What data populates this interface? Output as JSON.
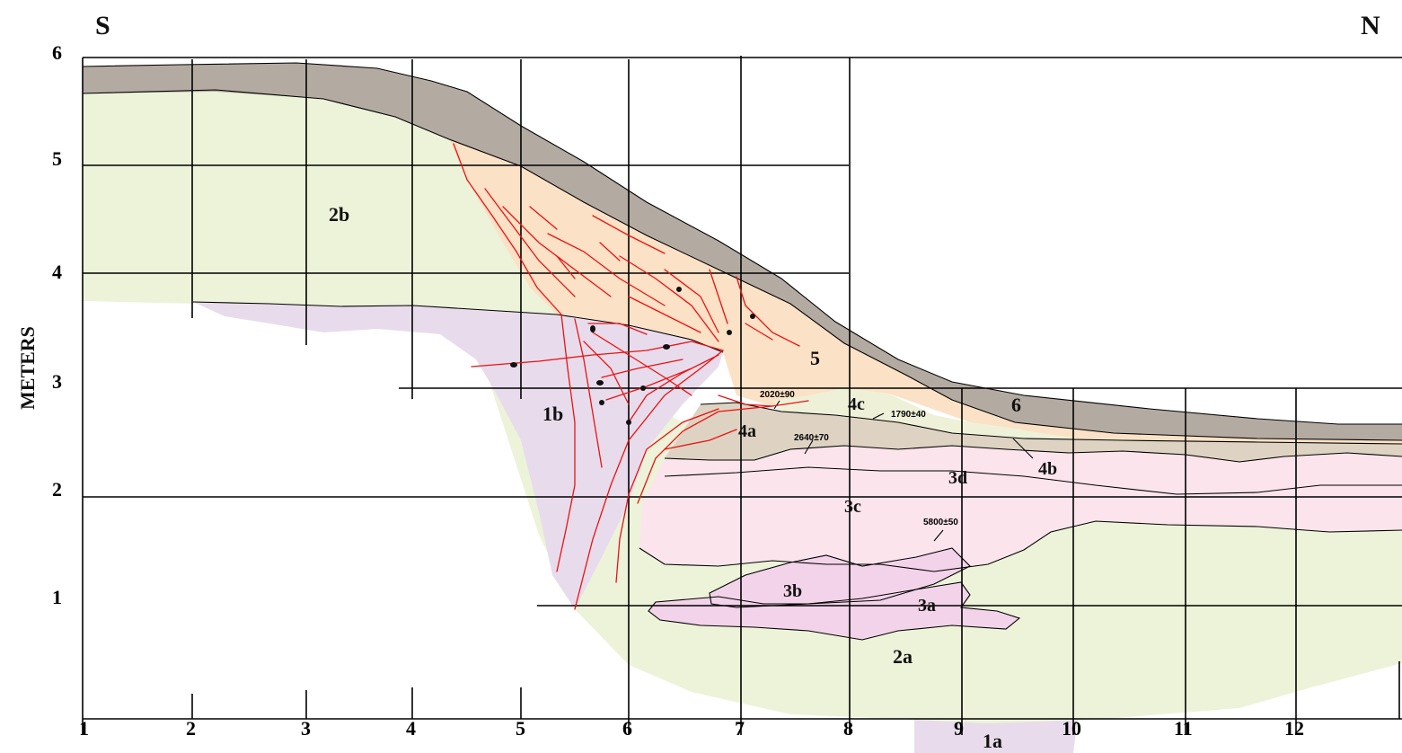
{
  "orientation": {
    "left": "S",
    "right": "N"
  },
  "y_axis": {
    "label": "METERS",
    "ticks": [
      "1",
      "2",
      "3",
      "4",
      "5",
      "6"
    ]
  },
  "x_axis": {
    "ticks": [
      "1",
      "2",
      "3",
      "4",
      "5",
      "6",
      "7",
      "8",
      "9",
      "10",
      "11",
      "12"
    ]
  },
  "units": {
    "u6": "6",
    "u5": "5",
    "u4a": "4a",
    "u4b": "4b",
    "u4c": "4c",
    "u3a": "3a",
    "u3b": "3b",
    "u3c": "3c",
    "u3d": "3d",
    "u2a": "2a",
    "u2b": "2b",
    "u1a": "1a",
    "u1b": "1b"
  },
  "dates": {
    "d1": "2020±90",
    "d2": "1790±40",
    "d3": "2640±70",
    "d4": "5800±50"
  },
  "colors": {
    "unit6": "#b3aba2",
    "unit5": "#fbe1c5",
    "unit4": "#ded3c2",
    "unit4c": "#eef1d8",
    "unit3": "#fbe4ec",
    "unit3ab": "#f3d3e9",
    "unit2": "#ecf3d9",
    "unit1": "#e8dcec",
    "fractures": "#ee1111"
  }
}
